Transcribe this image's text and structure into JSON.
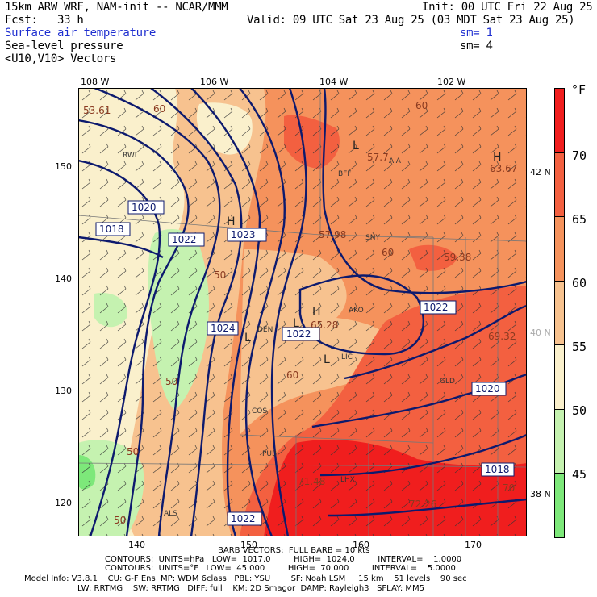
{
  "header": {
    "model": "15km ARW WRF, NAM-init -- NCAR/MMM",
    "init": "Init: 00 UTC Fri 22 Aug 25",
    "fcst": "Fcst:   33 h",
    "valid": "Valid: 09 UTC Sat 23 Aug 25 (03 MDT Sat 23 Aug 25)",
    "field1": "Surface air temperature",
    "field1_sm": "sm= 1",
    "field2": "Sea-level pressure",
    "field2_sm": "sm= 4",
    "field3": "<U10,V10> Vectors"
  },
  "legend": {
    "unit": "°F",
    "labels": [
      "70",
      "65",
      "60",
      "55",
      "50",
      "45"
    ],
    "colors": [
      "#f01e1e",
      "#f36040",
      "#f5925c",
      "#f7c28f",
      "#faf0cc",
      "#c5f2b0",
      "#7de87a"
    ]
  },
  "axes": {
    "top": [
      "108 W",
      "106 W",
      "104 W",
      "102 W"
    ],
    "left": [
      "150",
      "140",
      "130",
      "120"
    ],
    "bottom": [
      "140",
      "150",
      "160",
      "170"
    ],
    "right": [
      "42 N",
      "40 N",
      "38 N"
    ]
  },
  "map_labels": {
    "pressure": [
      "1020",
      "1018",
      "1022",
      "1023",
      "1024",
      "1022",
      "1022",
      "1020",
      "1018",
      "1022"
    ],
    "temps": [
      "53.61",
      "60",
      "57.7",
      "63.67",
      "57.98",
      "60",
      "59.38",
      "65.28",
      "60",
      "69.32",
      "50",
      "50",
      "60",
      "71.48",
      "72.26",
      "70",
      "50",
      "50"
    ],
    "stations": [
      "RWL",
      "BFF",
      "AIA",
      "SNY",
      "AKO",
      "DEN",
      "LIC",
      "GLD",
      "COS",
      "PUB",
      "ALS",
      "LHX"
    ],
    "highs_lows": [
      "H",
      "L",
      "L",
      "H",
      "L",
      "L",
      "H"
    ]
  },
  "footer": {
    "barb": "BARB VECTORS:  FULL BARB = 10 kts",
    "contours1": "CONTOURS:  UNITS=hPa   LOW=  1017.0         HIGH=  1024.0         INTERVAL=    1.0000",
    "contours2": "CONTOURS:  UNITS=°F   LOW=  45.000         HIGH=  70.000         INTERVAL=    5.0000",
    "info1": "Model Info: V3.8.1    CU: G-F Ens  MP: WDM 6class   PBL: YSU        SF: Noah LSM     15 km    51 levels    90 sec",
    "info2": "LW: RRTMG    SW: RRTMG   DIFF: full    KM: 2D Smagor  DAMP: Rayleigh3   SFLAY: MM5"
  }
}
